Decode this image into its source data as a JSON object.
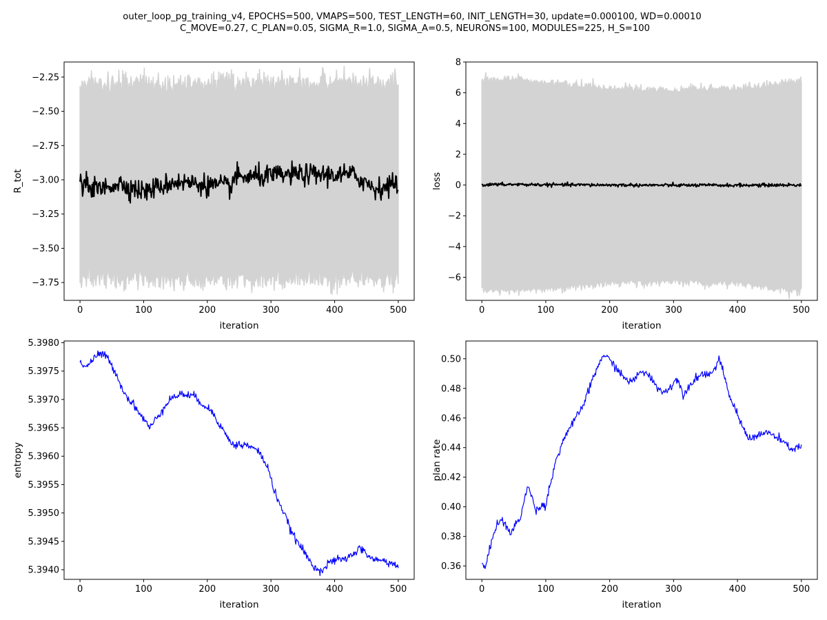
{
  "figure": {
    "title_line1": "outer_loop_pg_training_v4, EPOCHS=500, VMAPS=500, TEST_LENGTH=60, INIT_LENGTH=30, update=0.000100, WD=0.00010",
    "title_line2": "C_MOVE=0.27, C_PLAN=0.05, SIGMA_R=1.0, SIGMA_A=0.5, NEURONS=100, MODULES=225, H_S=100"
  },
  "chart_data": [
    {
      "type": "line",
      "xlabel": "iteration",
      "ylabel": "R_tot",
      "xlim": [
        -25,
        525
      ],
      "ylim": [
        -3.88,
        -2.14
      ],
      "xticks": [
        0,
        100,
        200,
        300,
        400,
        500
      ],
      "yticks": [
        -3.75,
        -3.5,
        -3.25,
        -3.0,
        -2.75,
        -2.5,
        -2.25
      ],
      "ytick_labels": [
        "−3.75",
        "−3.50",
        "−3.25",
        "−3.00",
        "−2.75",
        "−2.50",
        "−2.25"
      ],
      "x_range": [
        0,
        500
      ],
      "mean": {
        "color": "#000000",
        "approx_level": -3.02,
        "keypoints": [
          [
            0,
            -3.05
          ],
          [
            20,
            -3.1
          ],
          [
            27,
            -3.18
          ],
          [
            60,
            -3.03
          ],
          [
            100,
            -3.21
          ],
          [
            150,
            -3.0
          ],
          [
            235,
            -3.11
          ],
          [
            245,
            -2.9
          ],
          [
            265,
            -2.91
          ],
          [
            343,
            -2.85
          ],
          [
            430,
            -2.86
          ],
          [
            465,
            -3.15
          ],
          [
            500,
            -3.03
          ]
        ]
      },
      "band": {
        "color": "#d3d3d3",
        "upper_approx": -2.3,
        "lower_approx": -3.72,
        "upper_max": -2.15,
        "lower_min": -3.87
      }
    },
    {
      "type": "line",
      "xlabel": "iteration",
      "ylabel": "loss",
      "xlim": [
        -25,
        525
      ],
      "ylim": [
        -7.5,
        8.0
      ],
      "xticks": [
        0,
        100,
        200,
        300,
        400,
        500
      ],
      "yticks": [
        -6,
        -4,
        -2,
        0,
        2,
        4,
        6,
        8
      ],
      "ytick_labels": [
        "−6",
        "−4",
        "−2",
        "0",
        "2",
        "4",
        "6",
        "8"
      ],
      "x_range": [
        0,
        500
      ],
      "mean": {
        "color": "#000000",
        "approx_level": 0.0,
        "keypoints": [
          [
            0,
            0.05
          ],
          [
            50,
            0.1
          ],
          [
            100,
            0.05
          ],
          [
            200,
            0.0
          ],
          [
            300,
            -0.05
          ],
          [
            400,
            -0.05
          ],
          [
            500,
            0.0
          ]
        ]
      },
      "band": {
        "color": "#d3d3d3",
        "upper_keypoints": [
          [
            0,
            6.6
          ],
          [
            50,
            6.7
          ],
          [
            100,
            6.5
          ],
          [
            200,
            6.1
          ],
          [
            300,
            6.0
          ],
          [
            400,
            6.1
          ],
          [
            450,
            6.3
          ],
          [
            500,
            6.6
          ]
        ],
        "lower_keypoints": [
          [
            0,
            -6.6
          ],
          [
            50,
            -6.7
          ],
          [
            100,
            -6.6
          ],
          [
            200,
            -6.2
          ],
          [
            300,
            -6.1
          ],
          [
            400,
            -6.2
          ],
          [
            450,
            -6.5
          ],
          [
            500,
            -6.7
          ]
        ]
      }
    },
    {
      "type": "line",
      "xlabel": "iteration",
      "ylabel": "entropy",
      "xlim": [
        -25,
        525
      ],
      "ylim": [
        5.39383,
        5.39803
      ],
      "xticks": [
        0,
        100,
        200,
        300,
        400,
        500
      ],
      "yticks": [
        5.394,
        5.3945,
        5.395,
        5.3955,
        5.396,
        5.3965,
        5.397,
        5.3975,
        5.398
      ],
      "ytick_labels": [
        "5.3940",
        "5.3945",
        "5.3950",
        "5.3955",
        "5.3960",
        "5.3965",
        "5.3970",
        "5.3975",
        "5.3980"
      ],
      "series": [
        {
          "color": "#0000ff",
          "values": [
            [
              0,
              5.39765
            ],
            [
              10,
              5.39758
            ],
            [
              20,
              5.3977
            ],
            [
              30,
              5.3978
            ],
            [
              40,
              5.39778
            ],
            [
              55,
              5.3975
            ],
            [
              70,
              5.3971
            ],
            [
              85,
              5.3969
            ],
            [
              100,
              5.39665
            ],
            [
              110,
              5.3965
            ],
            [
              125,
              5.39675
            ],
            [
              140,
              5.397
            ],
            [
              160,
              5.3971
            ],
            [
              180,
              5.39705
            ],
            [
              195,
              5.3969
            ],
            [
              210,
              5.39675
            ],
            [
              225,
              5.39645
            ],
            [
              240,
              5.3962
            ],
            [
              260,
              5.3962
            ],
            [
              280,
              5.3961
            ],
            [
              295,
              5.3958
            ],
            [
              305,
              5.3954
            ],
            [
              320,
              5.395
            ],
            [
              335,
              5.3946
            ],
            [
              350,
              5.39435
            ],
            [
              365,
              5.39408
            ],
            [
              380,
              5.39398
            ],
            [
              395,
              5.39415
            ],
            [
              420,
              5.3942
            ],
            [
              440,
              5.39438
            ],
            [
              460,
              5.39418
            ],
            [
              480,
              5.39415
            ],
            [
              495,
              5.3941
            ],
            [
              500,
              5.39402
            ]
          ]
        }
      ]
    },
    {
      "type": "line",
      "xlabel": "iteration",
      "ylabel": "plan rate",
      "xlim": [
        -25,
        525
      ],
      "ylim": [
        0.351,
        0.512
      ],
      "xticks": [
        0,
        100,
        200,
        300,
        400,
        500
      ],
      "yticks": [
        0.36,
        0.38,
        0.4,
        0.42,
        0.44,
        0.46,
        0.48,
        0.5
      ],
      "ytick_labels": [
        "0.36",
        "0.38",
        "0.40",
        "0.42",
        "0.44",
        "0.46",
        "0.48",
        "0.50"
      ],
      "series": [
        {
          "color": "#0000ff",
          "values": [
            [
              0,
              0.362
            ],
            [
              5,
              0.358
            ],
            [
              20,
              0.385
            ],
            [
              30,
              0.392
            ],
            [
              45,
              0.382
            ],
            [
              60,
              0.393
            ],
            [
              72,
              0.414
            ],
            [
              85,
              0.398
            ],
            [
              100,
              0.402
            ],
            [
              115,
              0.43
            ],
            [
              130,
              0.448
            ],
            [
              145,
              0.458
            ],
            [
              160,
              0.47
            ],
            [
              175,
              0.488
            ],
            [
              190,
              0.503
            ],
            [
              205,
              0.497
            ],
            [
              220,
              0.488
            ],
            [
              235,
              0.484
            ],
            [
              250,
              0.492
            ],
            [
              265,
              0.487
            ],
            [
              280,
              0.478
            ],
            [
              290,
              0.478
            ],
            [
              305,
              0.487
            ],
            [
              315,
              0.476
            ],
            [
              330,
              0.485
            ],
            [
              345,
              0.49
            ],
            [
              360,
              0.49
            ],
            [
              372,
              0.5
            ],
            [
              385,
              0.478
            ],
            [
              400,
              0.462
            ],
            [
              410,
              0.452
            ],
            [
              420,
              0.446
            ],
            [
              435,
              0.449
            ],
            [
              450,
              0.45
            ],
            [
              470,
              0.444
            ],
            [
              485,
              0.439
            ],
            [
              500,
              0.441
            ]
          ]
        }
      ]
    }
  ]
}
